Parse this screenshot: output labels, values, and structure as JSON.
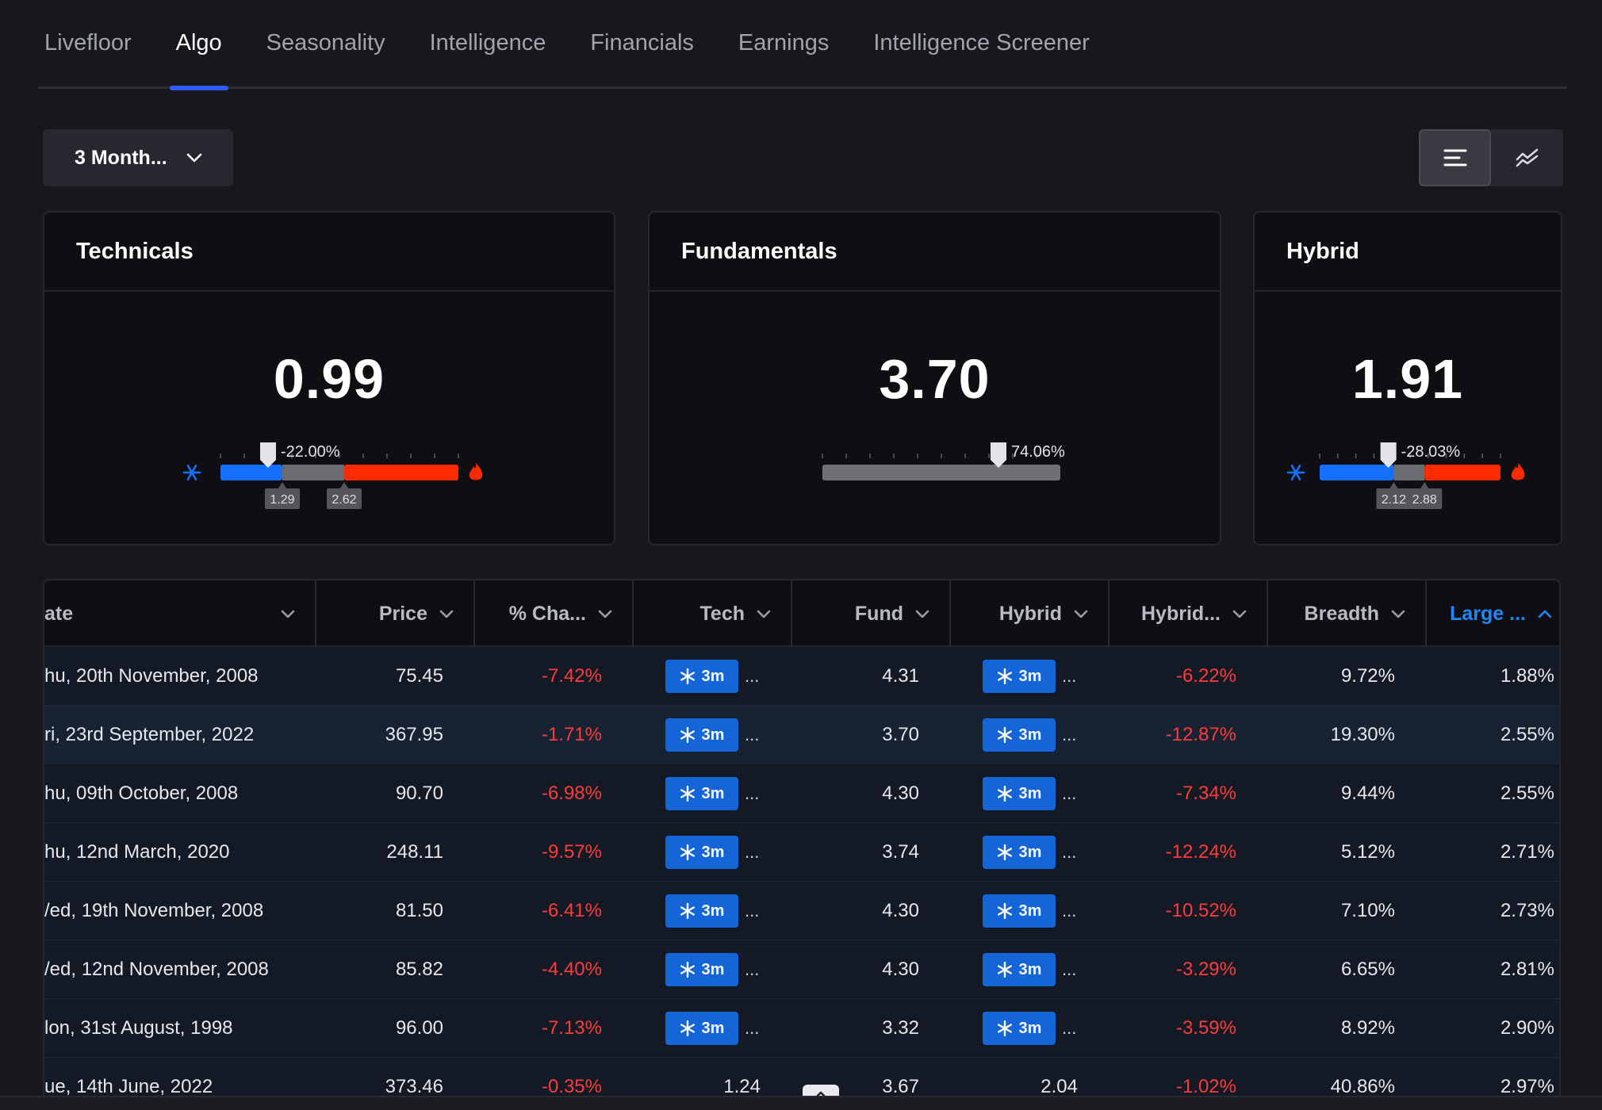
{
  "tabs": [
    {
      "label": "Livefloor",
      "active": false
    },
    {
      "label": "Algo",
      "active": true
    },
    {
      "label": "Seasonality",
      "active": false
    },
    {
      "label": "Intelligence",
      "active": false
    },
    {
      "label": "Financials",
      "active": false
    },
    {
      "label": "Earnings",
      "active": false
    },
    {
      "label": "Intelligence Screener",
      "active": false
    }
  ],
  "toolbar": {
    "period_label": "3 Month...",
    "view_modes": [
      {
        "icon": "align-left-lines-icon",
        "active": true
      },
      {
        "icon": "line-chart-icon",
        "active": false
      }
    ]
  },
  "cards": {
    "technicals": {
      "title": "Technicals",
      "value": "0.99",
      "pointer_label": "-22.00%",
      "marker_low": "1.29",
      "marker_high": "2.62",
      "cold_icon": "snowflake-icon",
      "hot_icon": "flame-icon"
    },
    "fundamentals": {
      "title": "Fundamentals",
      "value": "3.70",
      "pointer_label": "74.06%"
    },
    "hybrid": {
      "title": "Hybrid",
      "value": "1.91",
      "pointer_label": "-28.03%",
      "marker_low": "2.12",
      "marker_high": "2.88",
      "cold_icon": "snowflake-icon",
      "hot_icon": "flame-icon"
    }
  },
  "gauges": {
    "technicals": {
      "pointer": 0.2,
      "blue_end": 0.26,
      "red_start": 0.52,
      "marker_low": 0.26,
      "marker_high": 0.52
    },
    "fundamentals": {
      "pointer": 0.74
    },
    "hybrid": {
      "pointer": 0.38,
      "blue_end": 0.41,
      "red_start": 0.58,
      "marker_low": 0.41,
      "marker_high": 0.58
    }
  },
  "table": {
    "columns": [
      {
        "key": "date",
        "label": "ate",
        "sorted": false
      },
      {
        "key": "price",
        "label": "Price",
        "sorted": false
      },
      {
        "key": "pct_change",
        "label": "% Cha...",
        "sorted": false
      },
      {
        "key": "tech",
        "label": "Tech",
        "sorted": false
      },
      {
        "key": "fund",
        "label": "Fund",
        "sorted": false
      },
      {
        "key": "hybrid",
        "label": "Hybrid",
        "sorted": false
      },
      {
        "key": "hybrid_pct",
        "label": "Hybrid...",
        "sorted": false
      },
      {
        "key": "breadth",
        "label": "Breadth",
        "sorted": false
      },
      {
        "key": "large",
        "label": "Large ...",
        "sorted": true
      }
    ],
    "badge_label": "3m",
    "ellipsis": "...",
    "rows": [
      {
        "date": "hu, 20th November, 2008",
        "price": "75.45",
        "pct_change": "-7.42%",
        "tech": "badge",
        "fund": "4.31",
        "hybrid": "badge",
        "hybrid_pct": "-6.22%",
        "breadth": "9.72%",
        "large": "1.88%"
      },
      {
        "date": "ri, 23rd September, 2022",
        "price": "367.95",
        "pct_change": "-1.71%",
        "tech": "badge",
        "fund": "3.70",
        "hybrid": "badge",
        "hybrid_pct": "-12.87%",
        "breadth": "19.30%",
        "large": "2.55%"
      },
      {
        "date": "hu, 09th October, 2008",
        "price": "90.70",
        "pct_change": "-6.98%",
        "tech": "badge",
        "fund": "4.30",
        "hybrid": "badge",
        "hybrid_pct": "-7.34%",
        "breadth": "9.44%",
        "large": "2.55%"
      },
      {
        "date": "hu, 12nd March, 2020",
        "price": "248.11",
        "pct_change": "-9.57%",
        "tech": "badge",
        "fund": "3.74",
        "hybrid": "badge",
        "hybrid_pct": "-12.24%",
        "breadth": "5.12%",
        "large": "2.71%"
      },
      {
        "date": "/ed, 19th November, 2008",
        "price": "81.50",
        "pct_change": "-6.41%",
        "tech": "badge",
        "fund": "4.30",
        "hybrid": "badge",
        "hybrid_pct": "-10.52%",
        "breadth": "7.10%",
        "large": "2.73%"
      },
      {
        "date": "/ed, 12nd November, 2008",
        "price": "85.82",
        "pct_change": "-4.40%",
        "tech": "badge",
        "fund": "4.30",
        "hybrid": "badge",
        "hybrid_pct": "-3.29%",
        "breadth": "6.65%",
        "large": "2.81%"
      },
      {
        "date": "lon, 31st August, 1998",
        "price": "96.00",
        "pct_change": "-7.13%",
        "tech": "badge",
        "fund": "3.32",
        "hybrid": "badge",
        "hybrid_pct": "-3.59%",
        "breadth": "8.92%",
        "large": "2.90%"
      },
      {
        "date": "ue, 14th June, 2022",
        "price": "373.46",
        "pct_change": "-0.35%",
        "tech": "1.24",
        "fund": "3.67",
        "hybrid": "2.04",
        "hybrid_pct": "-1.02%",
        "breadth": "40.86%",
        "large": "2.97%"
      }
    ]
  },
  "colors": {
    "accent": "#2d5bff",
    "link_blue": "#1e88ff",
    "gauge_blue": "#1570ff",
    "gauge_red": "#ff2a00",
    "gauge_gray": "#6b6b70",
    "negative": "#ff3b3b",
    "badge_bg": "#1565d8"
  }
}
